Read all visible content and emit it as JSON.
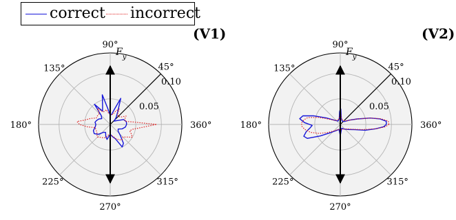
{
  "legend": {
    "correct": "correct",
    "incorrect": "incorrect",
    "correct_color": "#1515d9",
    "incorrect_color": "#e02020"
  },
  "chart_data": [
    {
      "type": "polar",
      "panel_label": "(V1)",
      "angle_ticks": [
        "360°",
        "45°",
        "90°",
        "135°",
        "180°",
        "225°",
        "270°",
        "315°"
      ],
      "radial_ticks": [
        {
          "value": 0.05,
          "label": "0.05"
        },
        {
          "value": 0.1,
          "label": "0.10"
        }
      ],
      "rmax": 0.14,
      "arrow_label": "F_y",
      "grid": true,
      "series": [
        {
          "name": "correct",
          "values": [
            [
              0,
              0.032
            ],
            [
              10,
              0.032
            ],
            [
              20,
              0.028
            ],
            [
              30,
              0.015
            ],
            [
              40,
              0.01
            ],
            [
              50,
              0.018
            ],
            [
              60,
              0.03
            ],
            [
              68,
              0.055
            ],
            [
              75,
              0.03
            ],
            [
              82,
              0.02
            ],
            [
              90,
              0.018
            ],
            [
              98,
              0.03
            ],
            [
              105,
              0.06
            ],
            [
              112,
              0.04
            ],
            [
              120,
              0.03
            ],
            [
              128,
              0.05
            ],
            [
              135,
              0.025
            ],
            [
              145,
              0.02
            ],
            [
              155,
              0.025
            ],
            [
              165,
              0.028
            ],
            [
              172,
              0.03
            ],
            [
              180,
              0.028
            ],
            [
              190,
              0.03
            ],
            [
              200,
              0.035
            ],
            [
              210,
              0.036
            ],
            [
              220,
              0.03
            ],
            [
              230,
              0.02
            ],
            [
              240,
              0.018
            ],
            [
              250,
              0.025
            ],
            [
              258,
              0.03
            ],
            [
              265,
              0.022
            ],
            [
              272,
              0.02
            ],
            [
              280,
              0.024
            ],
            [
              290,
              0.03
            ],
            [
              298,
              0.05
            ],
            [
              305,
              0.045
            ],
            [
              312,
              0.03
            ],
            [
              320,
              0.02
            ],
            [
              330,
              0.018
            ],
            [
              340,
              0.025
            ],
            [
              350,
              0.03
            ],
            [
              360,
              0.032
            ]
          ]
        },
        {
          "name": "incorrect",
          "values": [
            [
              0,
              0.09
            ],
            [
              5,
              0.05
            ],
            [
              12,
              0.03
            ],
            [
              20,
              0.03
            ],
            [
              28,
              0.035
            ],
            [
              35,
              0.025
            ],
            [
              45,
              0.022
            ],
            [
              55,
              0.025
            ],
            [
              60,
              0.035
            ],
            [
              68,
              0.028
            ],
            [
              75,
              0.02
            ],
            [
              82,
              0.02
            ],
            [
              90,
              0.02
            ],
            [
              98,
              0.022
            ],
            [
              105,
              0.03
            ],
            [
              112,
              0.028
            ],
            [
              120,
              0.028
            ],
            [
              128,
              0.04
            ],
            [
              135,
              0.03
            ],
            [
              145,
              0.03
            ],
            [
              155,
              0.03
            ],
            [
              163,
              0.04
            ],
            [
              170,
              0.05
            ],
            [
              175,
              0.065
            ],
            [
              180,
              0.06
            ],
            [
              186,
              0.045
            ],
            [
              192,
              0.03
            ],
            [
              200,
              0.03
            ],
            [
              210,
              0.03
            ],
            [
              218,
              0.033
            ],
            [
              225,
              0.035
            ],
            [
              232,
              0.032
            ],
            [
              240,
              0.03
            ],
            [
              248,
              0.028
            ],
            [
              255,
              0.025
            ],
            [
              262,
              0.02
            ],
            [
              270,
              0.02
            ],
            [
              278,
              0.022
            ],
            [
              285,
              0.025
            ],
            [
              292,
              0.03
            ],
            [
              300,
              0.035
            ],
            [
              308,
              0.038
            ],
            [
              315,
              0.035
            ],
            [
              322,
              0.04
            ],
            [
              330,
              0.05
            ],
            [
              336,
              0.045
            ],
            [
              342,
              0.04
            ],
            [
              348,
              0.045
            ],
            [
              354,
              0.06
            ],
            [
              360,
              0.09
            ]
          ]
        }
      ]
    },
    {
      "type": "polar",
      "panel_label": "(V2)",
      "angle_ticks": [
        "360°",
        "45°",
        "90°",
        "135°",
        "180°",
        "225°",
        "270°",
        "315°"
      ],
      "radial_ticks": [
        {
          "value": 0.05,
          "label": "0.05"
        },
        {
          "value": 0.1,
          "label": "0.10"
        }
      ],
      "rmax": 0.14,
      "arrow_label": "F_y",
      "grid": true,
      "series": [
        {
          "name": "correct",
          "values": [
            [
              0,
              0.09
            ],
            [
              4,
              0.09
            ],
            [
              8,
              0.078
            ],
            [
              12,
              0.06
            ],
            [
              18,
              0.035
            ],
            [
              25,
              0.02
            ],
            [
              35,
              0.01
            ],
            [
              50,
              0.008
            ],
            [
              65,
              0.008
            ],
            [
              80,
              0.012
            ],
            [
              88,
              0.03
            ],
            [
              90,
              0.03
            ],
            [
              93,
              0.025
            ],
            [
              100,
              0.012
            ],
            [
              120,
              0.008
            ],
            [
              140,
              0.012
            ],
            [
              155,
              0.03
            ],
            [
              162,
              0.055
            ],
            [
              167,
              0.075
            ],
            [
              172,
              0.08
            ],
            [
              177,
              0.07
            ],
            [
              182,
              0.055
            ],
            [
              187,
              0.06
            ],
            [
              192,
              0.068
            ],
            [
              198,
              0.075
            ],
            [
              203,
              0.07
            ],
            [
              210,
              0.045
            ],
            [
              220,
              0.025
            ],
            [
              235,
              0.015
            ],
            [
              255,
              0.01
            ],
            [
              265,
              0.015
            ],
            [
              270,
              0.022
            ],
            [
              275,
              0.015
            ],
            [
              290,
              0.008
            ],
            [
              310,
              0.012
            ],
            [
              330,
              0.02
            ],
            [
              340,
              0.03
            ],
            [
              347,
              0.05
            ],
            [
              353,
              0.07
            ],
            [
              357,
              0.085
            ],
            [
              360,
              0.09
            ]
          ]
        },
        {
          "name": "incorrect",
          "values": [
            [
              0,
              0.095
            ],
            [
              4,
              0.094
            ],
            [
              8,
              0.08
            ],
            [
              12,
              0.06
            ],
            [
              18,
              0.035
            ],
            [
              25,
              0.02
            ],
            [
              35,
              0.012
            ],
            [
              50,
              0.01
            ],
            [
              65,
              0.01
            ],
            [
              80,
              0.012
            ],
            [
              88,
              0.022
            ],
            [
              92,
              0.02
            ],
            [
              100,
              0.012
            ],
            [
              120,
              0.01
            ],
            [
              140,
              0.012
            ],
            [
              155,
              0.025
            ],
            [
              162,
              0.045
            ],
            [
              168,
              0.065
            ],
            [
              173,
              0.072
            ],
            [
              178,
              0.076
            ],
            [
              183,
              0.075
            ],
            [
              188,
              0.07
            ],
            [
              195,
              0.06
            ],
            [
              203,
              0.045
            ],
            [
              212,
              0.03
            ],
            [
              225,
              0.018
            ],
            [
              240,
              0.012
            ],
            [
              255,
              0.01
            ],
            [
              265,
              0.012
            ],
            [
              270,
              0.015
            ],
            [
              275,
              0.012
            ],
            [
              290,
              0.01
            ],
            [
              310,
              0.012
            ],
            [
              330,
              0.018
            ],
            [
              340,
              0.028
            ],
            [
              347,
              0.045
            ],
            [
              353,
              0.07
            ],
            [
              357,
              0.088
            ],
            [
              360,
              0.095
            ]
          ]
        }
      ]
    }
  ]
}
